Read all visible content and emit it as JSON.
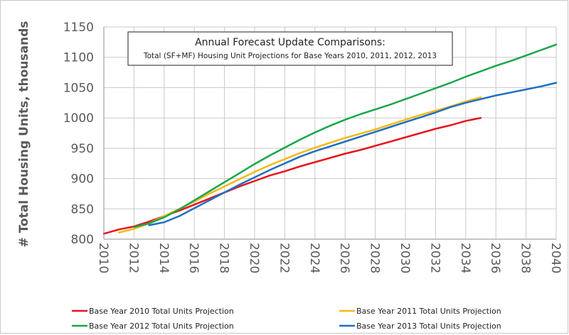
{
  "chart_data": {
    "type": "line",
    "title": "Annual Forecast Update Comparisons:",
    "subtitle": "Total (SF+MF) Housing Unit Projections for Base Years 2010, 2011, 2012, 2013",
    "xlabel": "",
    "ylabel": "# Total Housing Units, thousands",
    "xlim": [
      2010,
      2040
    ],
    "ylim": [
      800,
      1150
    ],
    "xticks": [
      "2010",
      "2012",
      "2014",
      "2016",
      "2018",
      "2020",
      "2022",
      "2024",
      "2026",
      "2028",
      "2030",
      "2032",
      "2034",
      "2036",
      "2038",
      "2040"
    ],
    "yticks": [
      "800",
      "850",
      "900",
      "950",
      "1000",
      "1050",
      "1100",
      "1150"
    ],
    "grid": true,
    "legend_position": "bottom",
    "series": [
      {
        "name": "Base Year 2010 Total Units Projection",
        "color": "#e8141b",
        "x": [
          2010,
          2011,
          2012,
          2013,
          2014,
          2015,
          2016,
          2017,
          2018,
          2019,
          2020,
          2021,
          2022,
          2023,
          2024,
          2025,
          2026,
          2027,
          2028,
          2029,
          2030,
          2031,
          2032,
          2033,
          2034,
          2035
        ],
        "y": [
          809,
          816,
          821,
          829,
          838,
          847,
          857,
          867,
          877,
          887,
          896,
          905,
          912,
          920,
          927,
          934,
          941,
          947,
          954,
          961,
          968,
          975,
          982,
          988,
          995,
          1000
        ]
      },
      {
        "name": "Base Year 2011 Total Units Projection",
        "color": "#f5b914",
        "x": [
          2011,
          2012,
          2013,
          2014,
          2015,
          2016,
          2017,
          2018,
          2019,
          2020,
          2021,
          2022,
          2023,
          2024,
          2025,
          2026,
          2027,
          2028,
          2029,
          2030,
          2031,
          2032,
          2033,
          2034,
          2035
        ],
        "y": [
          811,
          817,
          826,
          838,
          850,
          862,
          875,
          887,
          899,
          911,
          922,
          932,
          942,
          951,
          959,
          967,
          974,
          981,
          989,
          997,
          1005,
          1012,
          1019,
          1027,
          1034
        ]
      },
      {
        "name": "Base Year 2012 Total Units Projection",
        "color": "#1aa64b",
        "x": [
          2012,
          2013,
          2014,
          2015,
          2016,
          2017,
          2018,
          2019,
          2020,
          2021,
          2022,
          2023,
          2024,
          2025,
          2026,
          2027,
          2028,
          2029,
          2030,
          2031,
          2032,
          2033,
          2034,
          2035,
          2036,
          2037,
          2038,
          2039,
          2040
        ],
        "y": [
          820,
          826,
          836,
          849,
          864,
          879,
          894,
          909,
          924,
          938,
          951,
          964,
          976,
          987,
          997,
          1006,
          1014,
          1022,
          1031,
          1040,
          1049,
          1058,
          1068,
          1077,
          1086,
          1094,
          1103,
          1112,
          1121
        ]
      },
      {
        "name": "Base Year 2013 Total Units Projection",
        "color": "#1e6fc2",
        "x": [
          2013,
          2014,
          2015,
          2016,
          2017,
          2018,
          2019,
          2020,
          2021,
          2022,
          2023,
          2024,
          2025,
          2026,
          2027,
          2028,
          2029,
          2030,
          2031,
          2032,
          2033,
          2034,
          2035,
          2036,
          2037,
          2038,
          2039,
          2040
        ],
        "y": [
          823,
          828,
          838,
          851,
          864,
          877,
          890,
          902,
          914,
          925,
          936,
          945,
          953,
          961,
          969,
          977,
          985,
          993,
          1001,
          1009,
          1018,
          1025,
          1031,
          1037,
          1042,
          1047,
          1052,
          1058
        ]
      }
    ]
  }
}
